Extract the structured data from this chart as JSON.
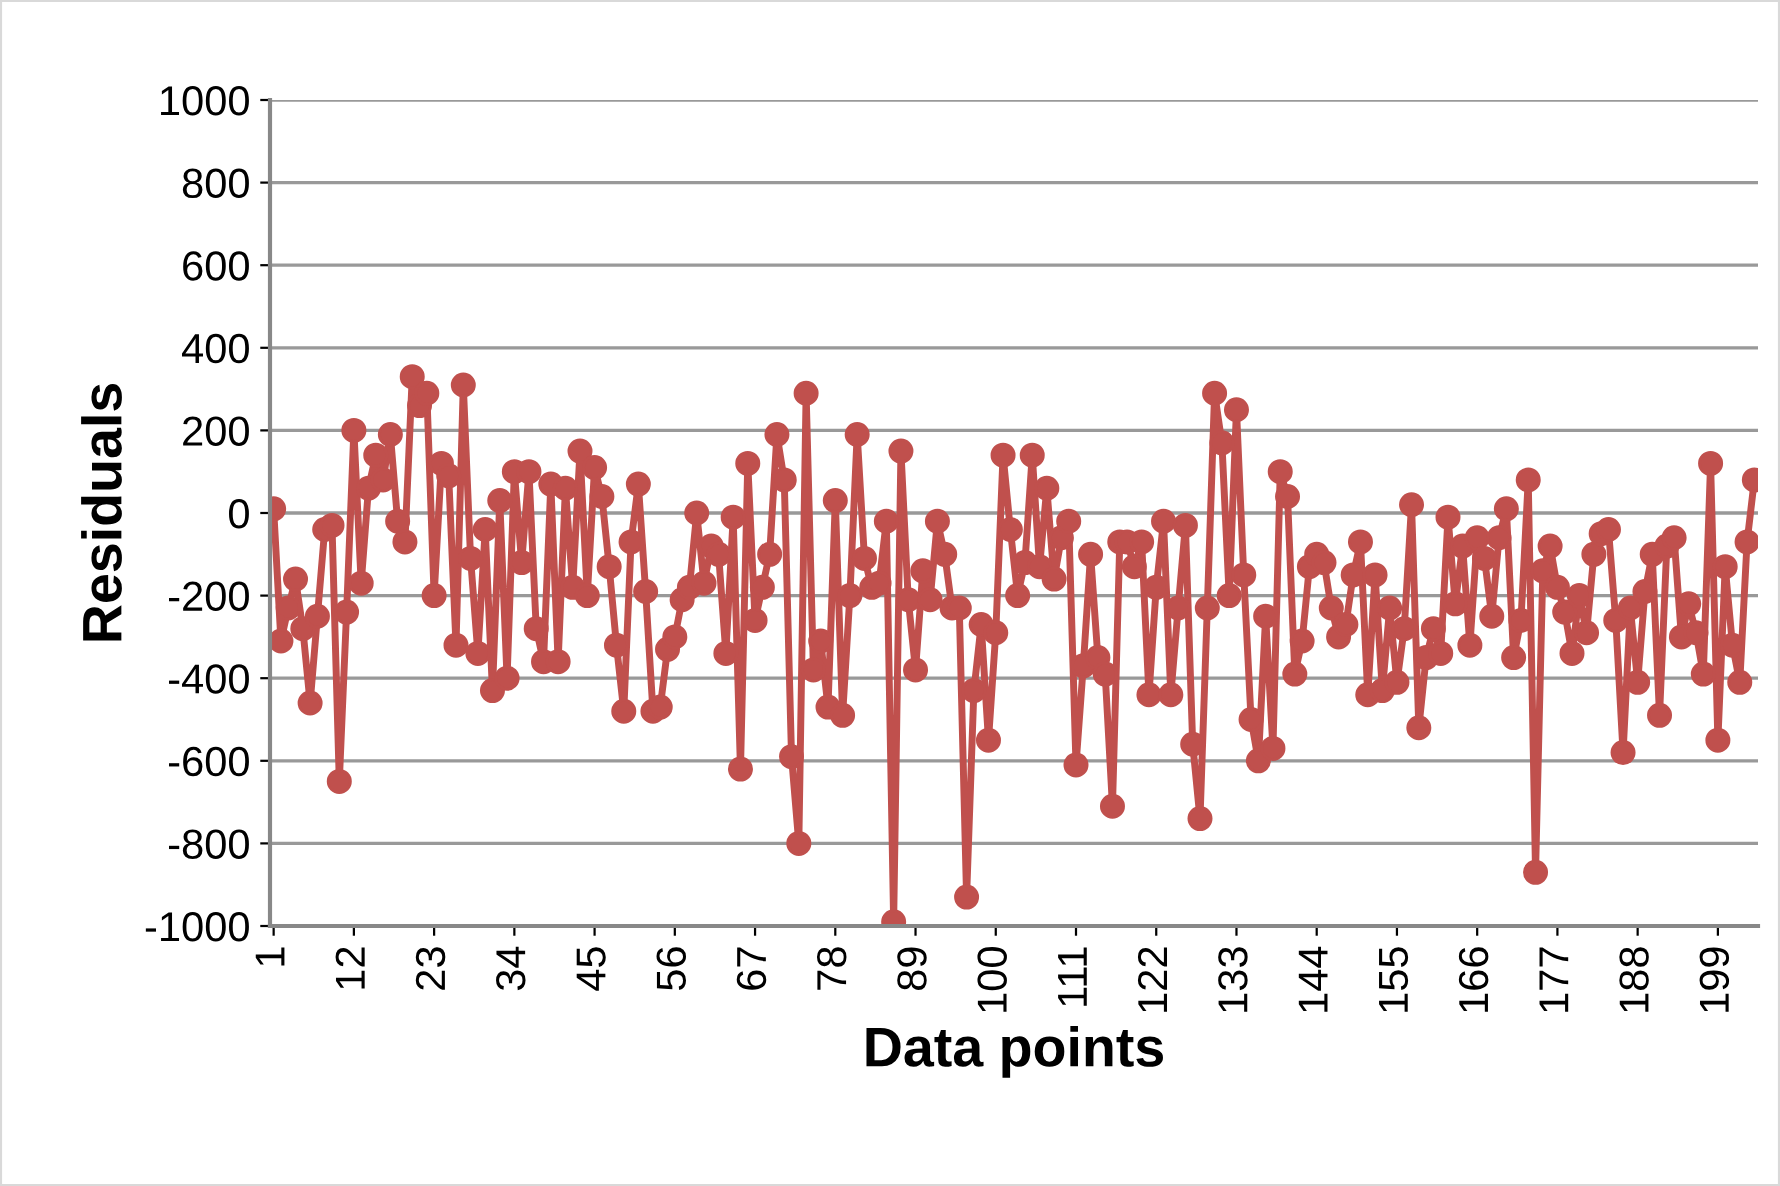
{
  "chart_data": {
    "type": "line",
    "xlabel": "Data points",
    "ylabel": "Residuals",
    "categories": [
      "1",
      null,
      null,
      null,
      null,
      null,
      null,
      null,
      null,
      null,
      null,
      "12",
      null,
      null,
      null,
      null,
      null,
      null,
      null,
      null,
      null,
      null,
      "23",
      null,
      null,
      null,
      null,
      null,
      null,
      null,
      null,
      null,
      null,
      "34",
      null,
      null,
      null,
      null,
      null,
      null,
      null,
      null,
      null,
      null,
      "45",
      null,
      null,
      null,
      null,
      null,
      null,
      null,
      null,
      null,
      null,
      "56",
      null,
      null,
      null,
      null,
      null,
      null,
      null,
      null,
      null,
      null,
      "67",
      null,
      null,
      null,
      null,
      null,
      null,
      null,
      null,
      null,
      null,
      "78",
      null,
      null,
      null,
      null,
      null,
      null,
      null,
      null,
      null,
      null,
      "89",
      null,
      null,
      null,
      null,
      null,
      null,
      null,
      null,
      null,
      null,
      "100",
      null,
      null,
      null,
      null,
      null,
      null,
      null,
      null,
      null,
      null,
      "111",
      null,
      null,
      null,
      null,
      null,
      null,
      null,
      null,
      null,
      null,
      "122",
      null,
      null,
      null,
      null,
      null,
      null,
      null,
      null,
      null,
      null,
      "133",
      null,
      null,
      null,
      null,
      null,
      null,
      null,
      null,
      null,
      null,
      "144",
      null,
      null,
      null,
      null,
      null,
      null,
      null,
      null,
      null,
      null,
      "155",
      null,
      null,
      null,
      null,
      null,
      null,
      null,
      null,
      null,
      null,
      "166",
      null,
      null,
      null,
      null,
      null,
      null,
      null,
      null,
      null,
      null,
      "177",
      null,
      null,
      null,
      null,
      null,
      null,
      null,
      null,
      null,
      null,
      "188",
      null,
      null,
      null,
      null,
      null,
      null,
      null,
      null,
      null,
      null,
      "199",
      null,
      null,
      null,
      null,
      null
    ],
    "series": [
      {
        "color": "#c0504d",
        "values": [
          10,
          -310,
          -230,
          -160,
          -280,
          -460,
          -250,
          -40,
          -30,
          -650,
          -240,
          200,
          -170,
          60,
          140,
          80,
          190,
          -20,
          -70,
          330,
          260,
          290,
          -200,
          120,
          90,
          -320,
          310,
          -110,
          -340,
          -40,
          -430,
          30,
          -400,
          100,
          -120,
          100,
          -280,
          -360,
          70,
          -360,
          60,
          -180,
          150,
          -200,
          110,
          40,
          -130,
          -320,
          -480,
          -70,
          70,
          -190,
          -480,
          -470,
          -330,
          -300,
          -210,
          -180,
          0,
          -170,
          -80,
          -100,
          -340,
          -10,
          -620,
          120,
          -260,
          -180,
          -100,
          190,
          80,
          -590,
          -800,
          290,
          -380,
          -310,
          -470,
          30,
          -490,
          -200,
          190,
          -110,
          -180,
          -170,
          -20,
          -990,
          150,
          -210,
          -380,
          -140,
          -210,
          -20,
          -100,
          -230,
          -230,
          -930,
          -430,
          -270,
          -550,
          -290,
          140,
          -40,
          -200,
          -120,
          140,
          -130,
          60,
          -160,
          -60,
          -20,
          -610,
          -370,
          -100,
          -350,
          -390,
          -710,
          -70,
          -70,
          -130,
          -70,
          -440,
          -180,
          -20,
          -440,
          -230,
          -30,
          -560,
          -740,
          -230,
          290,
          170,
          -200,
          250,
          -150,
          -500,
          -600,
          -250,
          -570,
          100,
          40,
          -390,
          -310,
          -130,
          -100,
          -120,
          -230,
          -300,
          -270,
          -150,
          -70,
          -440,
          -150,
          -430,
          -230,
          -410,
          -280,
          20,
          -520,
          -350,
          -280,
          -340,
          -10,
          -220,
          -80,
          -320,
          -60,
          -110,
          -250,
          -60,
          10,
          -350,
          -260,
          80,
          -870,
          -140,
          -80,
          -180,
          -240,
          -340,
          -200,
          -290,
          -100,
          -50,
          -40,
          -260,
          -580,
          -230,
          -410,
          -190,
          -100,
          -490,
          -80,
          -60,
          -300,
          -220,
          -290,
          -390,
          120,
          -550,
          -130,
          -320,
          -410,
          -70,
          80
        ]
      }
    ],
    "ylim": [
      -1000,
      1000
    ],
    "yticks": [
      -1000,
      -800,
      -600,
      -400,
      -200,
      0,
      200,
      400,
      600,
      800,
      1000
    ],
    "grid": "y",
    "marker": "circle",
    "line_style": "solid",
    "legend": false
  }
}
